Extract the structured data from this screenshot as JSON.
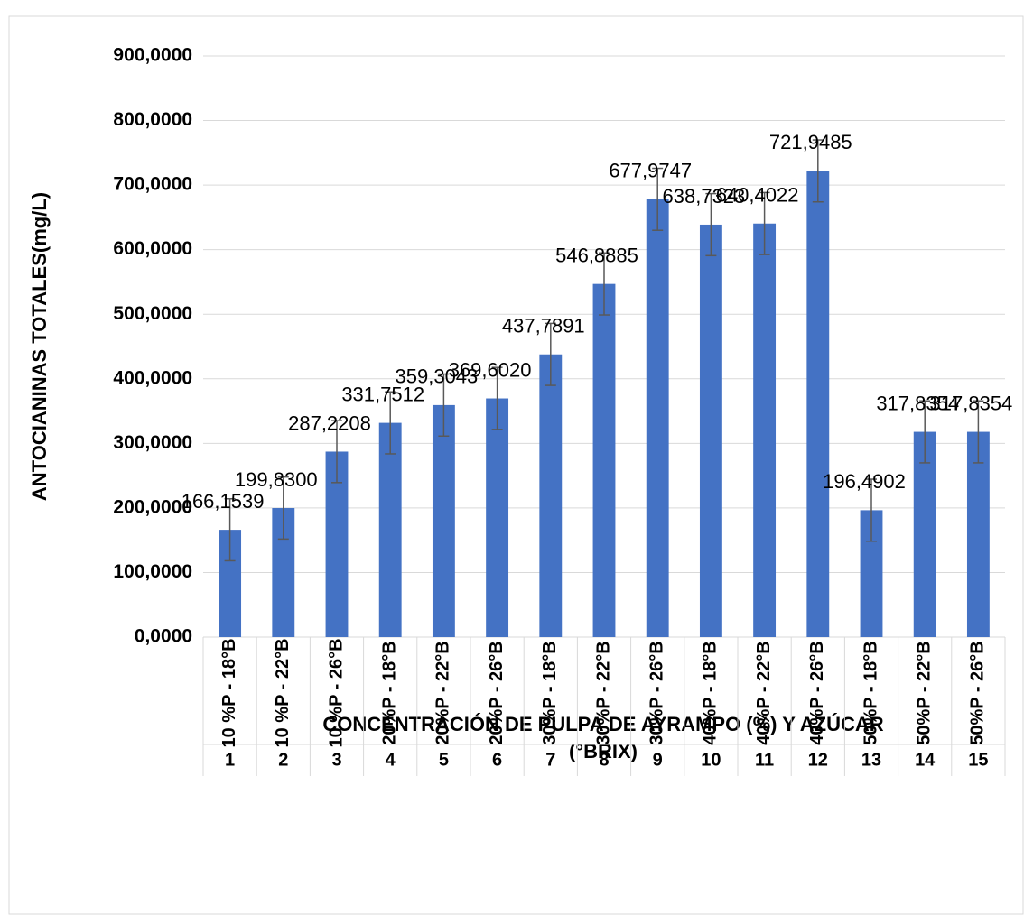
{
  "chart_data": {
    "type": "bar",
    "ylabel": "ANTOCIANINAS TOTALES(mg/L)",
    "xlabel": [
      "CONCENTRACIÓN DE PULPA DE AYRAMPO (%) Y AZÚCAR",
      "(°BRIX)"
    ],
    "categories": [
      "10 %P - 18°B",
      "10 %P - 22°B",
      "10 %P - 26°B",
      "20%P - 18°B",
      "20%P - 22°B",
      "20%P - 26°B",
      "30%P - 18°B",
      "30%P - 22°B",
      "30%P - 26°B",
      "40%P - 18°B",
      "40%P - 22°B",
      "40%P - 26°B",
      "50%P - 18°B",
      "50%P - 22°B",
      "50%P - 26°B"
    ],
    "category_ids": [
      "1",
      "2",
      "3",
      "4",
      "5",
      "6",
      "7",
      "8",
      "9",
      "10",
      "11",
      "12",
      "13",
      "14",
      "15"
    ],
    "values": [
      166.1539,
      199.83,
      287.2208,
      331.7512,
      359.3043,
      369.602,
      437.7891,
      546.8885,
      677.9747,
      638.7323,
      640.4022,
      721.9485,
      196.4902,
      317.8354,
      317.8354
    ],
    "value_labels": [
      "166,1539",
      "199,8300",
      "287,2208",
      "331,7512",
      "359,3043",
      "369,6020",
      "437,7891",
      "546,8885",
      "677,9747",
      "638,7323",
      "640,4022",
      "721,9485",
      "196,4902",
      "317,8354",
      "317,8354"
    ],
    "errors": [
      48,
      48,
      48,
      48,
      48,
      48,
      48,
      48,
      48,
      48,
      48,
      48,
      48,
      48,
      48
    ],
    "color": "#4472c4",
    "ylim": [
      0,
      900
    ],
    "yticks": [
      {
        "value": 0,
        "label": "0,0000"
      },
      {
        "value": 100,
        "label": "100,0000"
      },
      {
        "value": 200,
        "label": "200,0000"
      },
      {
        "value": 300,
        "label": "300,0000"
      },
      {
        "value": 400,
        "label": "400,0000"
      },
      {
        "value": 500,
        "label": "500,0000"
      },
      {
        "value": 600,
        "label": "600,0000"
      },
      {
        "value": 700,
        "label": "700,0000"
      },
      {
        "value": 800,
        "label": "800,0000"
      },
      {
        "value": 900,
        "label": "900,0000"
      }
    ],
    "grid": true
  }
}
